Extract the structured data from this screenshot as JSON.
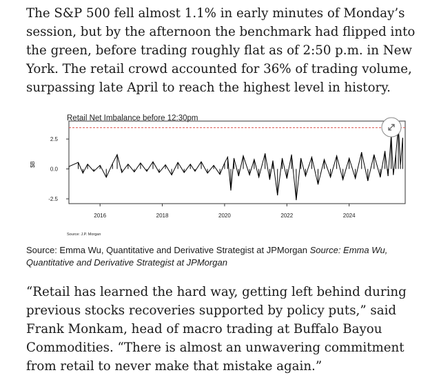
{
  "article": {
    "paragraph_1": "The S&P 500 fell almost 1.1% in early minutes of Monday’s session, but by the afternoon the benchmark had flipped into the green, before trading roughly flat as of 2:50 p.m. in New York. The retail crowd accounted for 36% of trading volume, surpassing late April to reach the highest level in history.",
    "paragraph_2": "“Retail has learned the hard way, getting left behind during previous stocks recoveries supported by policy puts,” said Frank Monkam, head of macro trading at Buffalo Bayou Commodities. “There is almost an unwavering commitment from retail to never make that mistake again.”",
    "caption_main": "Source: Emma Wu, Quantitative and Derivative Strategist at JPMorgan",
    "caption_italic": "Source: Emma Wu, Quantitative and Derivative Strategist at JPMorgan"
  },
  "chart_data": {
    "type": "line",
    "title": "Retail Net Imbalance before 12:30pm",
    "ylabel": "$B",
    "source_note": "Source: J.P. Morgan",
    "x_range": [
      2015.0,
      2025.8
    ],
    "ylim": [
      -2.9,
      4.0
    ],
    "x_ticks": [
      {
        "value": 2016,
        "label": "2016"
      },
      {
        "value": 2018,
        "label": "2018"
      },
      {
        "value": 2020,
        "label": "2020"
      },
      {
        "value": 2022,
        "label": "2022"
      },
      {
        "value": 2024,
        "label": "2024"
      }
    ],
    "y_ticks": [
      {
        "value": 2.5,
        "label": "2.5"
      },
      {
        "value": 0.0,
        "label": "0.0"
      },
      {
        "value": -2.5,
        "label": "-2.5"
      }
    ],
    "reference_line": {
      "value": 3.45,
      "style": "dashed",
      "color": "#d9534f"
    },
    "series": [
      {
        "color": "#000000",
        "points": [
          {
            "x": 2015.0,
            "y": 0.2
          },
          {
            "x": 2015.3,
            "y": 0.55
          },
          {
            "x": 2015.45,
            "y": -0.35
          },
          {
            "x": 2015.6,
            "y": 0.4
          },
          {
            "x": 2015.8,
            "y": -0.2
          },
          {
            "x": 2016.0,
            "y": 0.3
          },
          {
            "x": 2016.2,
            "y": -0.7
          },
          {
            "x": 2016.4,
            "y": 0.45
          },
          {
            "x": 2016.55,
            "y": 1.2
          },
          {
            "x": 2016.7,
            "y": -0.3
          },
          {
            "x": 2016.9,
            "y": 0.4
          },
          {
            "x": 2017.1,
            "y": -0.25
          },
          {
            "x": 2017.3,
            "y": 0.5
          },
          {
            "x": 2017.5,
            "y": -0.2
          },
          {
            "x": 2017.7,
            "y": 0.6
          },
          {
            "x": 2017.9,
            "y": -0.3
          },
          {
            "x": 2018.1,
            "y": 0.35
          },
          {
            "x": 2018.3,
            "y": -0.5
          },
          {
            "x": 2018.5,
            "y": 0.55
          },
          {
            "x": 2018.7,
            "y": -0.3
          },
          {
            "x": 2018.9,
            "y": 0.4
          },
          {
            "x": 2019.05,
            "y": -0.2
          },
          {
            "x": 2019.25,
            "y": 0.6
          },
          {
            "x": 2019.45,
            "y": -0.35
          },
          {
            "x": 2019.65,
            "y": 0.3
          },
          {
            "x": 2019.85,
            "y": -0.45
          },
          {
            "x": 2020.0,
            "y": 0.5
          },
          {
            "x": 2020.1,
            "y": 1.0
          },
          {
            "x": 2020.2,
            "y": -1.8
          },
          {
            "x": 2020.3,
            "y": 0.9
          },
          {
            "x": 2020.45,
            "y": -0.6
          },
          {
            "x": 2020.6,
            "y": 1.1
          },
          {
            "x": 2020.8,
            "y": -0.5
          },
          {
            "x": 2020.95,
            "y": 0.8
          },
          {
            "x": 2021.1,
            "y": -0.7
          },
          {
            "x": 2021.3,
            "y": 1.3
          },
          {
            "x": 2021.45,
            "y": -0.9
          },
          {
            "x": 2021.55,
            "y": 0.7
          },
          {
            "x": 2021.7,
            "y": -2.2
          },
          {
            "x": 2021.85,
            "y": 0.9
          },
          {
            "x": 2022.0,
            "y": -0.8
          },
          {
            "x": 2022.15,
            "y": 1.2
          },
          {
            "x": 2022.3,
            "y": -2.6
          },
          {
            "x": 2022.45,
            "y": 0.9
          },
          {
            "x": 2022.6,
            "y": -0.6
          },
          {
            "x": 2022.8,
            "y": 1.0
          },
          {
            "x": 2023.0,
            "y": -1.3
          },
          {
            "x": 2023.2,
            "y": 0.8
          },
          {
            "x": 2023.4,
            "y": -0.7
          },
          {
            "x": 2023.6,
            "y": 1.1
          },
          {
            "x": 2023.8,
            "y": -0.9
          },
          {
            "x": 2024.0,
            "y": 0.9
          },
          {
            "x": 2024.2,
            "y": -0.8
          },
          {
            "x": 2024.4,
            "y": 1.4
          },
          {
            "x": 2024.6,
            "y": -1.0
          },
          {
            "x": 2024.8,
            "y": 1.2
          },
          {
            "x": 2025.0,
            "y": -0.7
          },
          {
            "x": 2025.15,
            "y": 1.5
          },
          {
            "x": 2025.25,
            "y": -0.6
          },
          {
            "x": 2025.35,
            "y": 2.8
          },
          {
            "x": 2025.42,
            "y": -0.5
          },
          {
            "x": 2025.5,
            "y": 1.2
          },
          {
            "x": 2025.58,
            "y": 3.6
          },
          {
            "x": 2025.65,
            "y": 0.3
          },
          {
            "x": 2025.72,
            "y": 2.6
          }
        ]
      }
    ]
  },
  "ui": {
    "expand_icon": "expand-diagonal-icon"
  }
}
